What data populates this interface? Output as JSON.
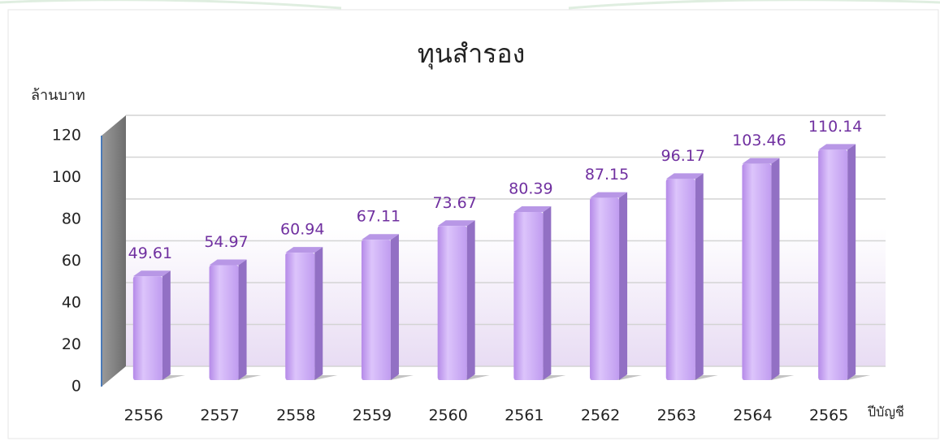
{
  "chart_data": {
    "type": "bar",
    "title": "ทุนสำรอง",
    "y_label": "ล้านบาท",
    "x_label": "ปีบัญชี",
    "categories": [
      "2556",
      "2557",
      "2558",
      "2559",
      "2560",
      "2561",
      "2562",
      "2563",
      "2564",
      "2565"
    ],
    "values": [
      49.61,
      54.97,
      60.94,
      67.11,
      73.67,
      80.39,
      87.15,
      96.17,
      103.46,
      110.14
    ],
    "color": "#c9a6f5",
    "ylim": [
      0,
      120
    ],
    "yticks": [
      0,
      20,
      40,
      60,
      80,
      100,
      120
    ],
    "grid": true
  }
}
